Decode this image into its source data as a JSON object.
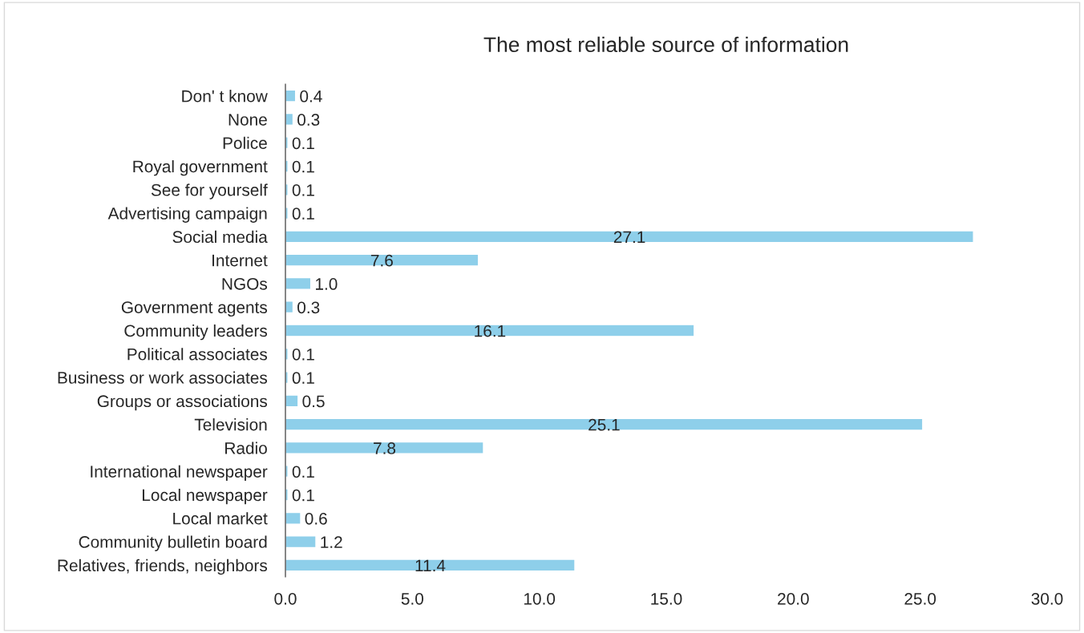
{
  "chart_data": {
    "type": "bar",
    "orientation": "horizontal",
    "title": "The most reliable source of information",
    "categories": [
      "Don' t know",
      "None",
      "Police",
      "Royal government",
      "See for yourself",
      "Advertising campaign",
      "Social media",
      "Internet",
      "NGOs",
      "Government agents",
      "Community leaders",
      "Political associates",
      "Business or work associates",
      "Groups or associations",
      "Television",
      "Radio",
      "International newspaper",
      "Local newspaper",
      "Local market",
      "Community bulletin board",
      "Relatives, friends, neighbors"
    ],
    "values": [
      0.4,
      0.3,
      0.1,
      0.1,
      0.1,
      0.1,
      27.1,
      7.6,
      1.0,
      0.3,
      16.1,
      0.1,
      0.1,
      0.5,
      25.1,
      7.8,
      0.1,
      0.1,
      0.6,
      1.2,
      11.4
    ],
    "value_labels": [
      "0.4",
      "0.3",
      "0.1",
      "0.1",
      "0.1",
      "0.1",
      "27.1",
      "7.6",
      "1.0",
      "0.3",
      "16.1",
      "0.1",
      "0.1",
      "0.5",
      "25.1",
      "7.8",
      "0.1",
      "0.1",
      "0.6",
      "1.2",
      "11.4"
    ],
    "color": "#8ecfea",
    "xlim": [
      0,
      30
    ],
    "xticks": [
      {
        "value": 0,
        "label": "0.0"
      },
      {
        "value": 5,
        "label": "5.0"
      },
      {
        "value": 10,
        "label": "10.0"
      },
      {
        "value": 15,
        "label": "15.0"
      },
      {
        "value": 20,
        "label": "20.0"
      },
      {
        "value": 25,
        "label": "25.0"
      },
      {
        "value": 30,
        "label": "30.0"
      }
    ],
    "grid": false,
    "legend": false
  }
}
